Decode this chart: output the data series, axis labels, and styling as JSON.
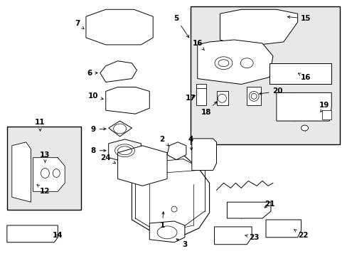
{
  "bg": "#ffffff",
  "lc": "#000000",
  "inset1_bg": "#e8e8e8",
  "inset2_bg": "#e8e8e8",
  "figsize": [
    4.89,
    3.6
  ],
  "dpi": 100
}
